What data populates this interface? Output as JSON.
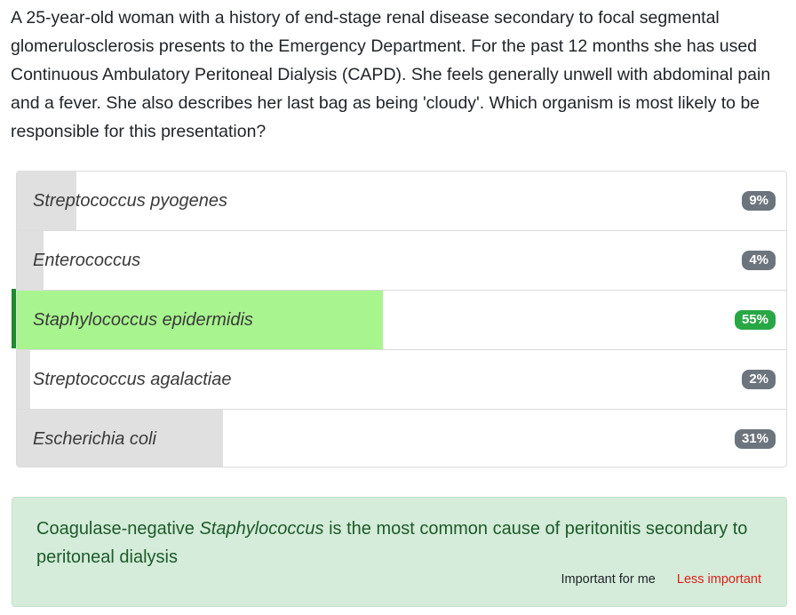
{
  "question": {
    "text": "A 25-year-old woman with a history of end-stage renal disease secondary to focal segmental glomerulosclerosis presents to the Emergency Department. For the past 12 months she has used Continuous Ambulatory Peritoneal Dialysis (CAPD). She feels generally unwell with abdominal pain and a fever. She also describes her last bag as being 'cloudy'. Which organism is most likely to be responsible for this presentation?"
  },
  "answers": [
    {
      "label": "Streptococcus pyogenes",
      "percent_text": "9%",
      "percent": 9,
      "correct": false
    },
    {
      "label": "Enterococcus",
      "percent_text": "4%",
      "percent": 4,
      "correct": false
    },
    {
      "label": "Staphylococcus epidermidis",
      "percent_text": "55%",
      "percent": 55,
      "correct": true
    },
    {
      "label": "Streptococcus agalactiae",
      "percent_text": "2%",
      "percent": 2,
      "correct": false
    },
    {
      "label": "Escherichia coli",
      "percent_text": "31%",
      "percent": 31,
      "correct": false
    }
  ],
  "explanation": {
    "text_before": "Coagulase-negative ",
    "text_italic": "Staphylococcus",
    "text_after": " is the most common cause of peritonitis secondary to peritoneal dialysis",
    "important_label": "Important for me",
    "less_important_label": "Less important"
  },
  "colors": {
    "correct_bar": "#a8f58f",
    "correct_badge": "#28a745",
    "bar": "#e0e0e0",
    "badge": "#6c757d",
    "explanation_bg": "#d4ecd9",
    "less_important": "#e0201b"
  }
}
